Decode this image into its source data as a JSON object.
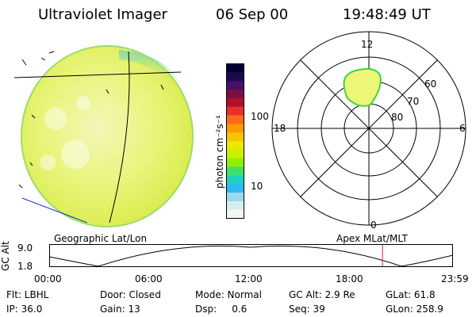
{
  "header": {
    "instrument": "Ultraviolet Imager",
    "date": "06 Sep 00",
    "time": "19:48:49 UT"
  },
  "colorbar": {
    "unit_label": "photon cm⁻²s⁻¹",
    "ticks": [
      "100",
      "10"
    ],
    "colors": [
      "#000033",
      "#1a0a4d",
      "#4a0f6b",
      "#7a1040",
      "#b0102a",
      "#e8302a",
      "#ff6a1a",
      "#ff9a00",
      "#f7c400",
      "#e8e800",
      "#c8f000",
      "#8ef000",
      "#3ee06a",
      "#20d0c0",
      "#30b8f0",
      "#9ad8f0",
      "#d8ecf0",
      "#f4f4f4"
    ]
  },
  "polar_plot": {
    "mlt_labels": [
      "12",
      "6",
      "0",
      "18"
    ],
    "lat_labels": [
      "60",
      "70",
      "80"
    ]
  },
  "timeline": {
    "left_label": "Geographic Lat/Lon",
    "right_label": "Apex MLat/MLT",
    "y_axis_label": "GC Alt",
    "y_max": "9.0",
    "y_min": "1.8",
    "x_ticks": [
      "00:00",
      "06:00",
      "12:00",
      "18:00",
      "23:59"
    ],
    "current_time_fraction": 0.826
  },
  "info": {
    "row1": {
      "flt": "Flt: LBHL",
      "door": "Door: Closed",
      "mode": "Mode: Normal",
      "gcalt": "GC Alt: 2.9 Re",
      "glat": "GLat:  61.8"
    },
    "row2": {
      "ip": "IP: 36.0",
      "gain": "Gain: 13",
      "dsp": "Dsp:     0.6",
      "seq": "Seq: 39",
      "glon": "GLon: 258.9"
    }
  }
}
